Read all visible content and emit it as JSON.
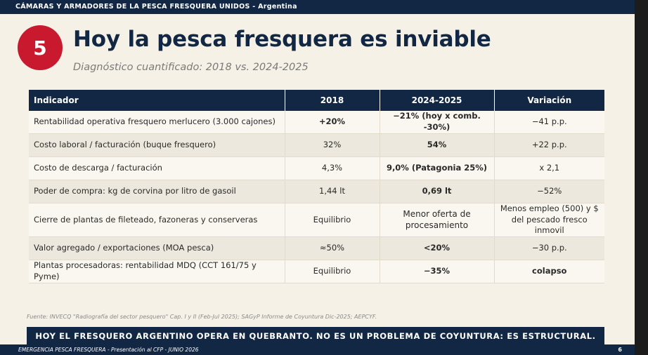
{
  "header": {
    "org": "CÁMARAS Y ARMADORES DE LA PESCA FRESQUERA UNIDOS - Argentina"
  },
  "slide": {
    "number": "5",
    "title": "Hoy la pesca fresquera es inviable",
    "subtitle": "Diagnóstico cuantificado: 2018 vs. 2024-2025"
  },
  "table": {
    "headers": [
      "Indicador",
      "2018",
      "2024-2025",
      "Variación"
    ],
    "rows": [
      {
        "indicator": "Rentabilidad operativa fresquero merlucero (3.000 cajones)",
        "y2018": "+20%",
        "y2024": "−21% (hoy x comb. -30%)",
        "variation": "−41 p.p."
      },
      {
        "indicator": "Costo laboral / facturación (buque fresquero)",
        "y2018": "32%",
        "y2024": "54%",
        "variation": "+22 p.p."
      },
      {
        "indicator": "Costo de descarga / facturación",
        "y2018": "4,3%",
        "y2024": "9,0%  (Patagonia 25%)",
        "variation": "x 2,1"
      },
      {
        "indicator": "Poder de compra: kg de corvina por litro de gasoil",
        "y2018": "1,44 lt",
        "y2024": "0,69 lt",
        "variation": "−52%"
      },
      {
        "indicator": "Cierre de plantas de fileteado, fazoneras y conserveras",
        "y2018": "Equilibrio",
        "y2024": "Menor oferta de procesamiento",
        "variation": "Menos empleo (500) y $ del pescado fresco inmovil"
      },
      {
        "indicator": "Valor agregado / exportaciones (MOA pesca)",
        "y2018": "≈50%",
        "y2024": "<20%",
        "variation": "−30 p.p."
      },
      {
        "indicator": "Plantas procesadoras: rentabilidad MDQ (CCT 161/75 y Pyme)",
        "y2018": "Equilibrio",
        "y2024": "−35%",
        "variation": "colapso"
      }
    ]
  },
  "source": "Fuente: INVECQ \"Radiografía del sector pesquero\" Cap. I y II (Feb-Jul 2025); SAGyP Informe de Coyuntura Dic-2025; AEPCYF.",
  "banner": "HOY EL FRESQUERO ARGENTINO OPERA EN QUEBRANTO. NO ES UN PROBLEMA DE COYUNTURA: ES ESTRUCTURAL.",
  "footer": {
    "left": "EMERGENCIA PESCA FRESQUERA - Presentación al CFP - JUNIO 2026",
    "page": "6"
  }
}
